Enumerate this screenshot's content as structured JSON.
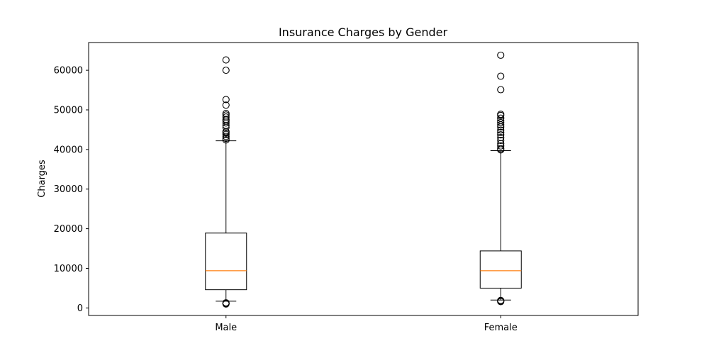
{
  "chart_data": {
    "type": "box",
    "title": "Insurance Charges by Gender",
    "xlabel": "",
    "ylabel": "Charges",
    "ylim": [
      -1900,
      67000
    ],
    "y_ticks": [
      0,
      10000,
      20000,
      30000,
      40000,
      50000,
      60000
    ],
    "y_tick_labels": [
      "0",
      "10000",
      "20000",
      "30000",
      "40000",
      "50000",
      "60000"
    ],
    "grid": false,
    "categories": [
      "Male",
      "Female"
    ],
    "boxes": [
      {
        "name": "Male",
        "whisker_low": 1700,
        "q1": 4600,
        "median": 9400,
        "q3": 18900,
        "whisker_high": 42200,
        "outliers_high": [
          42400,
          42800,
          43300,
          43800,
          44200,
          44500,
          45600,
          46100,
          46700,
          47200,
          47600,
          48200,
          48700,
          49100,
          51200,
          52600,
          60000,
          62600
        ],
        "outliers_low": [
          1000,
          1150,
          1300
        ]
      },
      {
        "name": "Female",
        "whisker_low": 2000,
        "q1": 5000,
        "median": 9400,
        "q3": 14400,
        "whisker_high": 39700,
        "outliers_high": [
          39900,
          40200,
          40900,
          41500,
          42300,
          43000,
          43700,
          44300,
          44900,
          45700,
          46200,
          46800,
          47300,
          47900,
          48600,
          48900,
          55100,
          58500,
          63800
        ],
        "outliers_low": [
          1600,
          1750,
          1900
        ]
      }
    ],
    "colors": {
      "box": "#000000",
      "median": "#ff7f0e",
      "background": "#ffffff"
    }
  }
}
